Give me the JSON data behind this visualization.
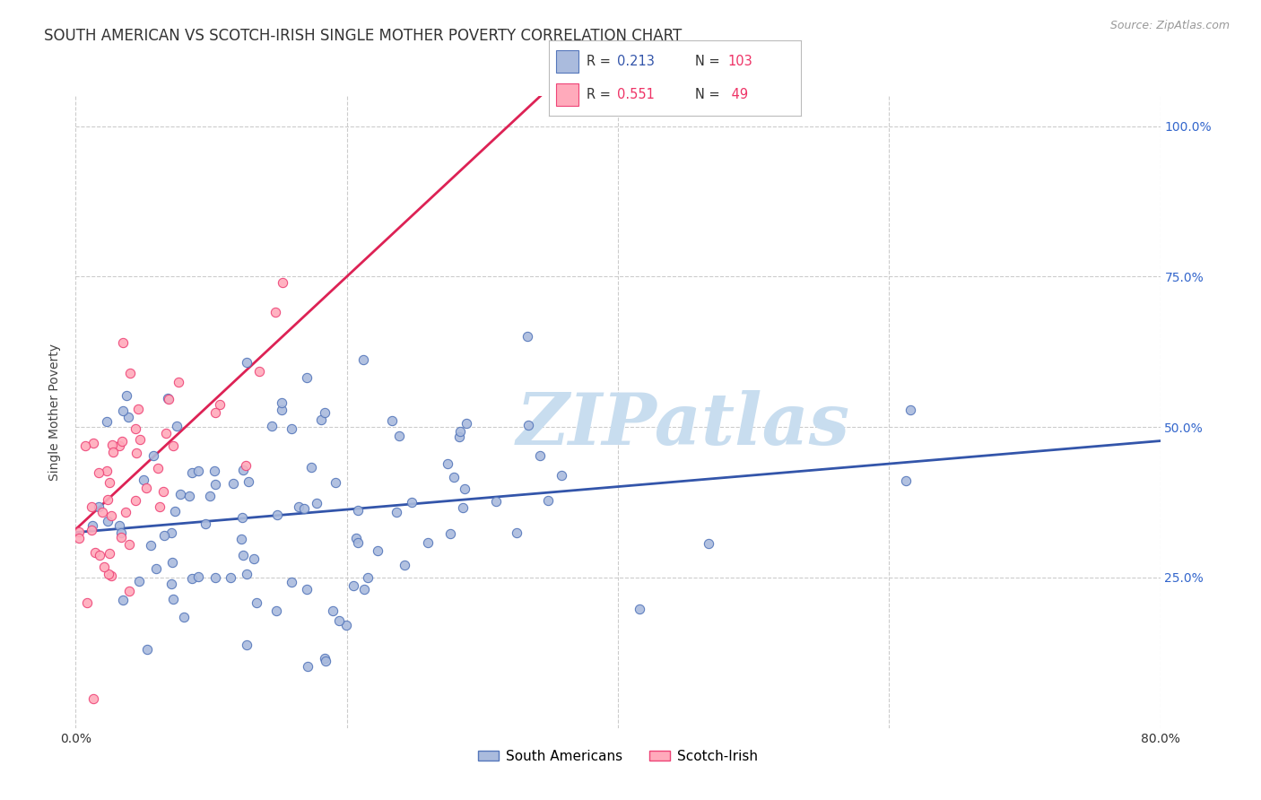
{
  "title": "SOUTH AMERICAN VS SCOTCH-IRISH SINGLE MOTHER POVERTY CORRELATION CHART",
  "source": "Source: ZipAtlas.com",
  "ylabel": "Single Mother Poverty",
  "blue_color": "#AABBDD",
  "blue_edge_color": "#5577BB",
  "pink_color": "#FFAABB",
  "pink_edge_color": "#EE4477",
  "blue_line_color": "#3355AA",
  "pink_line_color": "#DD2255",
  "watermark_color": "#C8DDEF",
  "background_color": "#FFFFFF",
  "grid_color": "#CCCCCC",
  "right_tick_color": "#3366CC",
  "title_color": "#333333",
  "source_color": "#999999",
  "blue_R": 0.213,
  "blue_N": 103,
  "pink_R": 0.551,
  "pink_N": 49,
  "xmin": 0.0,
  "xmax": 0.8,
  "ymin": 0.0,
  "ymax": 1.05,
  "blue_scatter_seed": 42,
  "pink_scatter_seed": 99,
  "title_fontsize": 12,
  "source_fontsize": 9,
  "axis_label_fontsize": 10,
  "legend_fontsize": 11,
  "tick_fontsize": 10,
  "marker_size": 55,
  "blue_line_intercept": 0.325,
  "blue_line_slope": 0.19,
  "pink_line_intercept": 0.33,
  "pink_line_slope": 2.1
}
